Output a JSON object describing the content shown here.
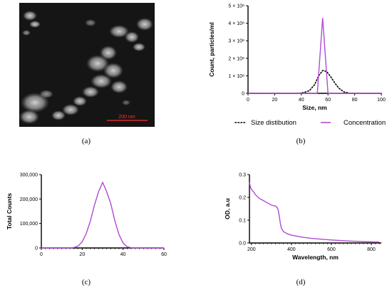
{
  "captions": {
    "a": "(a)",
    "b": "(b)",
    "c": "(c)",
    "d": "(d)"
  },
  "micrograph": {
    "scale_bar_label": "200 nm"
  },
  "colors": {
    "purple": "#b04bd0",
    "black": "#000000",
    "scalebar": "#ff3030",
    "bg_image": "#151515"
  },
  "chart_data": [
    {
      "panel": "b",
      "type": "line",
      "xlabel": "Size, nm",
      "ylabel": "Count, particles/ml",
      "xlim": [
        0,
        100
      ],
      "ylim": [
        0,
        500000000
      ],
      "x_ticks": [
        "0",
        "20",
        "40",
        "60",
        "80",
        "100"
      ],
      "y_ticks": [
        "0",
        "1 × 10⁸",
        "2 × 10⁸",
        "3 × 10⁸",
        "4 × 10⁸",
        "5 × 10⁸"
      ],
      "legend_position": "bottom",
      "series": [
        {
          "name": "Size distibution",
          "style": "dotted",
          "color": "#000000",
          "x": [
            0,
            30,
            34,
            38,
            42,
            46,
            50,
            53,
            56,
            59,
            62,
            65,
            68,
            72,
            76,
            80,
            100
          ],
          "y": [
            0,
            0,
            0,
            0,
            5000000,
            15000000,
            50000000,
            100000000,
            130000000,
            125000000,
            95000000,
            60000000,
            30000000,
            8000000,
            1000000,
            0,
            0
          ]
        },
        {
          "name": "Concentration",
          "style": "solid",
          "color": "#b04bd0",
          "x": [
            0,
            52,
            56,
            60,
            100
          ],
          "y": [
            0,
            0,
            430000000,
            0,
            0
          ]
        }
      ]
    },
    {
      "panel": "c",
      "type": "line",
      "xlabel": "",
      "ylabel": "Total Counts",
      "xlim": [
        0,
        60
      ],
      "ylim": [
        0,
        300000
      ],
      "x_ticks": [
        "0",
        "20",
        "40",
        "60"
      ],
      "y_ticks": [
        "0",
        "100,000",
        "200,000",
        "300,000"
      ],
      "series": [
        {
          "style": "solid",
          "color": "#b04bd0",
          "x": [
            0,
            14,
            16,
            18,
            20,
            22,
            24,
            26,
            28,
            30,
            32,
            34,
            36,
            38,
            40,
            42,
            44,
            46,
            60
          ],
          "y": [
            0,
            0,
            2000,
            8000,
            25000,
            60000,
            110000,
            175000,
            230000,
            268000,
            230000,
            180000,
            110000,
            55000,
            20000,
            5000,
            1000,
            0,
            0
          ]
        }
      ]
    },
    {
      "panel": "d",
      "type": "line",
      "xlabel": "Wavelength, nm",
      "ylabel": "OD, a.u",
      "xlim": [
        190,
        850
      ],
      "ylim": [
        0,
        0.3
      ],
      "x_ticks": [
        "200",
        "400",
        "600",
        "800"
      ],
      "x_tick_values": [
        200,
        400,
        600,
        800
      ],
      "y_ticks": [
        "0.0",
        "0.1",
        "0.2",
        "0.3"
      ],
      "series": [
        {
          "style": "solid",
          "color": "#b04bd0",
          "x": [
            190,
            195,
            200,
            210,
            220,
            240,
            260,
            280,
            300,
            320,
            330,
            335,
            340,
            345,
            350,
            360,
            380,
            400,
            450,
            500,
            600,
            700,
            800,
            840
          ],
          "y": [
            0.265,
            0.245,
            0.235,
            0.225,
            0.212,
            0.195,
            0.186,
            0.176,
            0.166,
            0.162,
            0.155,
            0.14,
            0.115,
            0.085,
            0.065,
            0.05,
            0.04,
            0.034,
            0.026,
            0.02,
            0.013,
            0.008,
            0.005,
            0.004
          ]
        }
      ]
    }
  ]
}
